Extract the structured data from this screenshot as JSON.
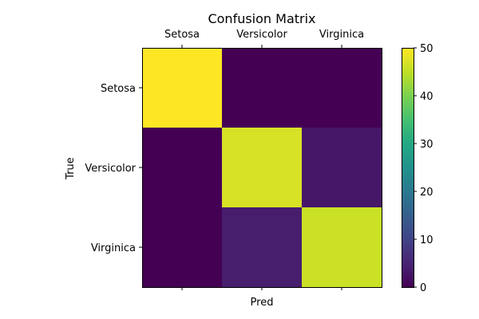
{
  "chart_data": {
    "type": "heatmap",
    "title": "Confusion Matrix",
    "xlabel": "Pred",
    "ylabel": "True",
    "x_categories": [
      "Setosa",
      "Versicolor",
      "Virginica"
    ],
    "y_categories": [
      "Setosa",
      "Versicolor",
      "Virginica"
    ],
    "x_axis_position": "top",
    "values": [
      [
        50,
        0,
        0
      ],
      [
        0,
        47,
        3
      ],
      [
        0,
        4,
        46
      ]
    ],
    "colormap": "viridis",
    "colorbar": {
      "range": [
        0,
        50
      ],
      "ticks": [
        "0",
        "10",
        "20",
        "30",
        "40",
        "50"
      ],
      "position": "right"
    },
    "grid": false
  }
}
